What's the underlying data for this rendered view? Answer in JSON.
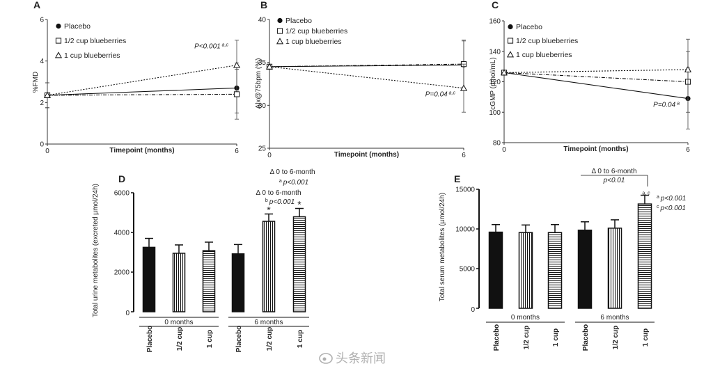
{
  "chart_data": [
    {
      "type": "line",
      "panel": "A",
      "ylabel": "%FMD",
      "xlabel": "Timepoint (months)",
      "x": [
        0,
        6
      ],
      "xlim": [
        0,
        6
      ],
      "ylim": [
        0,
        6
      ],
      "yticks": [
        0,
        2,
        4,
        6
      ],
      "grid": false,
      "legend_position": "top-left",
      "series": [
        {
          "name": "Placebo",
          "marker": "filled-circle",
          "line": "solid",
          "values": [
            2.35,
            2.7
          ],
          "err": [
            0.6,
            1.2
          ]
        },
        {
          "name": "1/2 cup blueberries",
          "marker": "open-square",
          "line": "dash-dot",
          "values": [
            2.35,
            2.4
          ],
          "err": [
            0.6,
            1.2
          ]
        },
        {
          "name": "1 cup blueberries",
          "marker": "open-triangle",
          "line": "dotted",
          "values": [
            2.35,
            3.8
          ],
          "err": [
            0.6,
            1.2
          ]
        }
      ],
      "annotations": [
        {
          "text": "P<0.001",
          "sup": "a,c",
          "x": 6,
          "y": 3.8
        }
      ]
    },
    {
      "type": "line",
      "panel": "B",
      "ylabel": "Alx@75bpm (%)",
      "xlabel": "Timepoint (months)",
      "x": [
        0,
        6
      ],
      "xlim": [
        0,
        6
      ],
      "ylim": [
        25,
        40
      ],
      "yticks": [
        25,
        30,
        35,
        40
      ],
      "grid": false,
      "legend_position": "top-left",
      "series": [
        {
          "name": "Placebo",
          "marker": "filled-circle",
          "line": "solid",
          "values": [
            34.5,
            34.7
          ],
          "err": [
            0,
            2.8
          ]
        },
        {
          "name": "1/2 cup blueberries",
          "marker": "open-square",
          "line": "dash-dot",
          "values": [
            34.5,
            34.8
          ],
          "err": [
            0,
            2.8
          ]
        },
        {
          "name": "1 cup blueberries",
          "marker": "open-triangle",
          "line": "dotted",
          "values": [
            34.5,
            32.0
          ],
          "err": [
            0,
            2.8
          ]
        }
      ],
      "annotations": [
        {
          "text": "P=0.04",
          "sup": "a,c",
          "x": 6,
          "y": 32.0
        }
      ]
    },
    {
      "type": "line",
      "panel": "C",
      "ylabel": "cGMP (pmol/mL)",
      "xlabel": "Timepoint (months)",
      "x": [
        0,
        6
      ],
      "xlim": [
        0,
        6
      ],
      "ylim": [
        80,
        160
      ],
      "yticks": [
        80,
        100,
        120,
        140,
        160
      ],
      "grid": false,
      "legend_position": "top-left",
      "series": [
        {
          "name": "Placebo",
          "marker": "filled-circle",
          "line": "solid",
          "values": [
            126,
            109
          ],
          "err": [
            0,
            20
          ]
        },
        {
          "name": "1/2 cup blueberries",
          "marker": "open-square",
          "line": "dash-dot",
          "values": [
            126,
            120
          ],
          "err": [
            0,
            20
          ]
        },
        {
          "name": "1 cup blueberries",
          "marker": "open-triangle",
          "line": "dotted",
          "values": [
            126,
            128
          ],
          "err": [
            0,
            20
          ]
        }
      ],
      "annotations": [
        {
          "text": "P=0.04",
          "sup": "a",
          "x": 6,
          "y": 109
        }
      ]
    },
    {
      "type": "bar",
      "panel": "D",
      "ylabel": "Total urine metabolites (excreted µmol/24h)",
      "ylim": [
        0,
        6000
      ],
      "yticks": [
        0,
        2000,
        4000,
        6000
      ],
      "grid": false,
      "categories": [
        "Placebo",
        "1/2 cup",
        "1 cup",
        "Placebo",
        "1/2 cup",
        "1 cup"
      ],
      "fills": [
        "solid",
        "vertical",
        "horizontal",
        "solid",
        "vertical",
        "horizontal"
      ],
      "values": [
        3250,
        2950,
        3080,
        2920,
        4560,
        4790
      ],
      "err": [
        450,
        420,
        430,
        470,
        370,
        420
      ],
      "stars": [
        false,
        false,
        false,
        false,
        true,
        true
      ],
      "groups": [
        {
          "label": "0 months",
          "from": 0,
          "to": 2
        },
        {
          "label": "6 months",
          "from": 3,
          "to": 5
        }
      ],
      "annotations": [
        {
          "line1": "Δ 0 to 6-month",
          "sup": "b",
          "line2": "p<0.001",
          "over": 4
        },
        {
          "line1": "Δ 0 to 6-month",
          "sup": "a",
          "line2": "p<0.001",
          "over": 5
        }
      ]
    },
    {
      "type": "bar",
      "panel": "E",
      "ylabel": "Total serum metabolites (µmol/24h)",
      "ylim": [
        0,
        15000
      ],
      "yticks": [
        0,
        5000,
        10000,
        15000
      ],
      "grid": false,
      "categories": [
        "Placebo",
        "1/2 cup",
        "1 cup",
        "Placebo",
        "1/2 cup",
        "1 cup"
      ],
      "fills": [
        "solid",
        "vertical",
        "horizontal",
        "solid",
        "vertical",
        "horizontal"
      ],
      "values": [
        9600,
        9550,
        9550,
        9850,
        10100,
        13150
      ],
      "err": [
        950,
        950,
        1000,
        1050,
        1050,
        1100
      ],
      "groups": [
        {
          "label": "0 months",
          "from": 0,
          "to": 2
        },
        {
          "label": "6 months",
          "from": 3,
          "to": 5
        }
      ],
      "bracket": {
        "line1": "Δ 0 to 6-month",
        "line2": "p<0.01",
        "from": 3,
        "to": 5
      },
      "side_notes": [
        {
          "sup": "a",
          "text": "p<0.001"
        },
        {
          "sup": "c",
          "text": "p<0.001"
        }
      ],
      "bar_sup": "a, c"
    }
  ],
  "watermark": "头条新闻"
}
